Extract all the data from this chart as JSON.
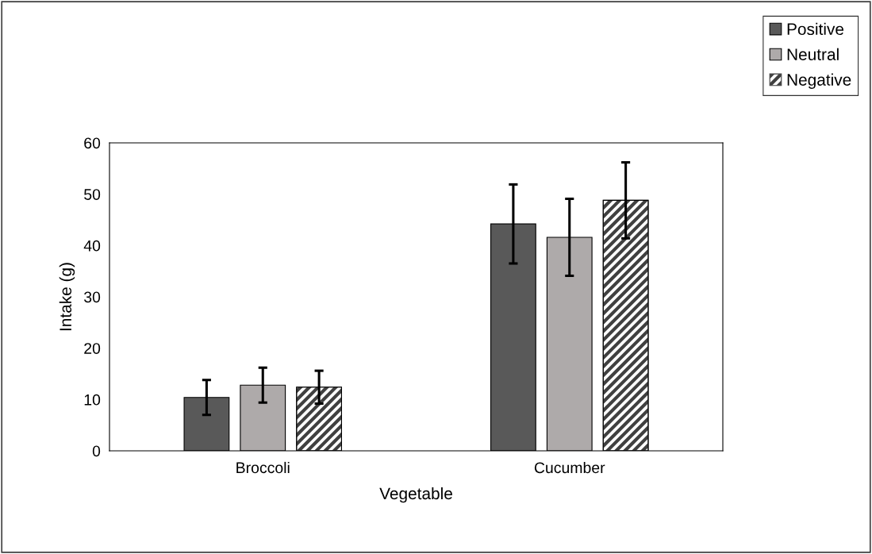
{
  "chart_data": {
    "type": "bar",
    "xlabel": "Vegetable",
    "ylabel": "Intake (g)",
    "categories": [
      "Broccoli",
      "Cucumber"
    ],
    "series": [
      {
        "name": "Positive",
        "color": "#595959",
        "values": [
          10.4,
          44.2
        ],
        "errors": [
          3.4,
          7.7
        ]
      },
      {
        "name": "Neutral",
        "color": "#aeaaaa",
        "values": [
          12.8,
          41.6
        ],
        "errors": [
          3.4,
          7.5
        ]
      },
      {
        "name": "Negative",
        "color": "#404040",
        "values": [
          12.4,
          48.8
        ],
        "errors": [
          3.2,
          7.4
        ]
      }
    ],
    "ylim": [
      0,
      60
    ],
    "yticks": [
      0,
      10,
      20,
      30,
      40,
      50,
      60
    ],
    "grid": false,
    "legend": "top right"
  }
}
